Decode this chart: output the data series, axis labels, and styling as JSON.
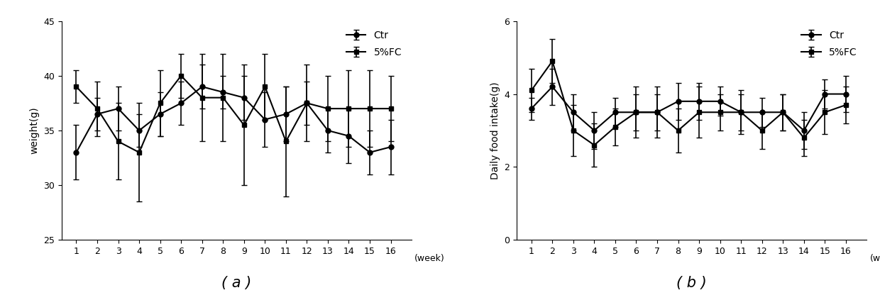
{
  "weeks": [
    1,
    2,
    3,
    4,
    5,
    6,
    7,
    8,
    9,
    10,
    11,
    12,
    13,
    14,
    15,
    16
  ],
  "weight_ctr_mean": [
    33.0,
    36.5,
    37.0,
    35.0,
    36.5,
    37.5,
    39.0,
    38.5,
    38.0,
    36.0,
    36.5,
    37.5,
    35.0,
    34.5,
    33.0,
    33.5
  ],
  "weight_ctr_err": [
    2.5,
    1.5,
    2.0,
    1.5,
    2.0,
    2.0,
    2.0,
    1.5,
    2.0,
    2.5,
    2.5,
    2.0,
    2.0,
    2.5,
    2.0,
    2.5
  ],
  "weight_fc_mean": [
    39.0,
    37.0,
    34.0,
    33.0,
    37.5,
    40.0,
    38.0,
    38.0,
    35.5,
    39.0,
    34.0,
    37.5,
    37.0,
    37.0,
    37.0,
    37.0
  ],
  "weight_fc_err": [
    1.5,
    2.5,
    3.5,
    4.5,
    3.0,
    2.0,
    4.0,
    4.0,
    5.5,
    3.0,
    5.0,
    3.5,
    3.0,
    3.5,
    3.5,
    3.0
  ],
  "food_ctr_mean": [
    3.6,
    4.2,
    3.5,
    3.0,
    3.5,
    3.5,
    3.5,
    3.8,
    3.8,
    3.8,
    3.5,
    3.5,
    3.5,
    3.0,
    4.0,
    4.0
  ],
  "food_ctr_err": [
    0.3,
    0.5,
    0.5,
    0.5,
    0.4,
    0.5,
    0.5,
    0.5,
    0.5,
    0.4,
    0.5,
    0.4,
    0.5,
    0.5,
    0.4,
    0.5
  ],
  "food_fc_mean": [
    4.1,
    4.9,
    3.0,
    2.6,
    3.1,
    3.5,
    3.5,
    3.0,
    3.5,
    3.5,
    3.5,
    3.0,
    3.5,
    2.8,
    3.5,
    3.7
  ],
  "food_fc_err": [
    0.6,
    0.6,
    0.7,
    0.6,
    0.5,
    0.7,
    0.7,
    0.6,
    0.7,
    0.5,
    0.6,
    0.5,
    0.5,
    0.5,
    0.6,
    0.5
  ],
  "weight_ylim": [
    25,
    45
  ],
  "weight_yticks": [
    25,
    30,
    35,
    40,
    45
  ],
  "food_ylim": [
    0,
    6
  ],
  "food_yticks": [
    0,
    2,
    4,
    6
  ],
  "weight_ylabel": "weight(g)",
  "food_ylabel": "Daily food intake(g)",
  "xlabel_suffix": "(week)",
  "label_ctr": "Ctr",
  "label_fc": "5%FC",
  "subtitle_a": "( a )",
  "subtitle_b": "( b )",
  "line_color": "#000000",
  "linewidth": 1.5,
  "markersize": 5,
  "capsize": 3,
  "elinewidth": 1.2,
  "font_size_tick": 9,
  "font_size_label": 10,
  "font_size_legend": 10,
  "font_size_subtitle": 15
}
